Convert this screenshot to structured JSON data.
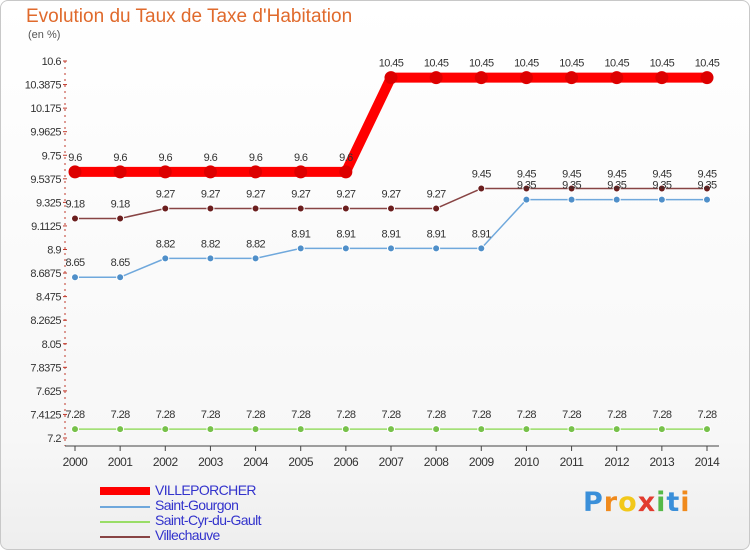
{
  "chart_data": {
    "type": "line",
    "title": "Evolution du Taux de Taxe d'Habitation",
    "unit_label": "(en %)",
    "xlabel": "",
    "ylabel": "",
    "categories": [
      "2000",
      "2001",
      "2002",
      "2003",
      "2004",
      "2005",
      "2006",
      "2007",
      "2008",
      "2009",
      "2010",
      "2011",
      "2012",
      "2013",
      "2014"
    ],
    "ylim": [
      7.2,
      10.6
    ],
    "yticks": [
      7.2,
      7.4125,
      7.625,
      7.8375,
      8.05,
      8.2625,
      8.475,
      8.6875,
      8.9,
      9.1125,
      9.325,
      9.5375,
      9.75,
      9.9625,
      10.175,
      10.3875,
      10.6
    ],
    "series": [
      {
        "name": "VILLEPORCHER",
        "color": "#ff0000",
        "values": [
          9.6,
          9.6,
          9.6,
          9.6,
          9.6,
          9.6,
          9.6,
          10.45,
          10.45,
          10.45,
          10.45,
          10.45,
          10.45,
          10.45,
          10.45
        ],
        "labels": [
          "9.6",
          "9.6",
          "9.6",
          "9.6",
          "9.6",
          "9.6",
          "9.6",
          "10.45",
          "10.45",
          "10.45",
          "10.45",
          "10.45",
          "10.45",
          "10.45",
          "10.45"
        ]
      },
      {
        "name": "Saint-Gourgon",
        "color": "#6fa8dc",
        "values": [
          8.65,
          8.65,
          8.82,
          8.82,
          8.82,
          8.91,
          8.91,
          8.91,
          8.91,
          8.91,
          9.35,
          9.35,
          9.35,
          9.35,
          9.35
        ],
        "labels": [
          "8.65",
          "8.65",
          "8.82",
          "8.82",
          "8.82",
          "8.91",
          "8.91",
          "8.91",
          "8.91",
          "8.91",
          "9.35",
          "9.35",
          "9.35",
          "9.35",
          "9.35"
        ]
      },
      {
        "name": "Saint-Cyr-du-Gault",
        "color": "#99dd66",
        "values": [
          7.28,
          7.28,
          7.28,
          7.28,
          7.28,
          7.28,
          7.28,
          7.28,
          7.28,
          7.28,
          7.28,
          7.28,
          7.28,
          7.28,
          7.28
        ],
        "labels": [
          "7.28",
          "7.28",
          "7.28",
          "7.28",
          "7.28",
          "7.28",
          "7.28",
          "7.28",
          "7.28",
          "7.28",
          "7.28",
          "7.28",
          "7.28",
          "7.28",
          "7.28"
        ]
      },
      {
        "name": "Villechauve",
        "color": "#884444",
        "values": [
          9.18,
          9.18,
          9.27,
          9.27,
          9.27,
          9.27,
          9.27,
          9.27,
          9.27,
          9.45,
          9.45,
          9.45,
          9.45,
          9.45,
          9.45
        ],
        "labels": [
          "9.18",
          "9.18",
          "9.27",
          "9.27",
          "9.27",
          "9.27",
          "9.27",
          "9.27",
          "9.27",
          "9.45",
          "9.45",
          "9.45",
          "9.45",
          "9.45",
          "9.45"
        ]
      }
    ]
  },
  "legend": {
    "items": [
      "VILLEPORCHER",
      "Saint-Gourgon",
      "Saint-Cyr-du-Gault",
      "Villechauve"
    ]
  },
  "logo": {
    "letters": [
      "P",
      "r",
      "o",
      "x",
      "i",
      "t",
      "i"
    ],
    "colors": [
      "#3a8fd9",
      "#f08a1c",
      "#f2c81a",
      "#e23b2e",
      "#55b948",
      "#3a8fd9",
      "#f08a1c"
    ]
  }
}
